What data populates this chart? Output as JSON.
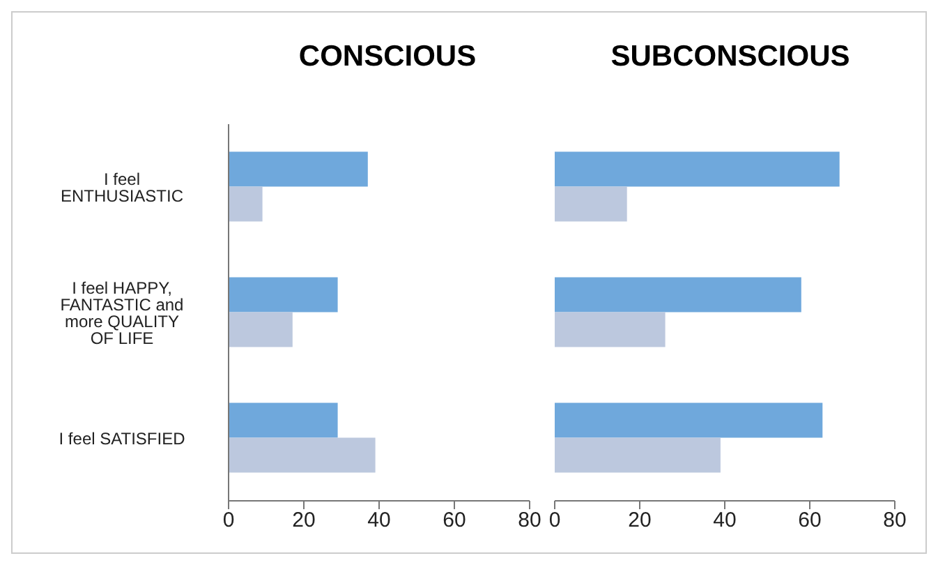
{
  "chart_data": [
    {
      "type": "bar",
      "orientation": "horizontal",
      "title": "CONSCIOUS",
      "categories": [
        "I feel ENTHUSIASTIC",
        "I feel HAPPY, FANTASTIC and more QUALITY OF LIFE",
        "I feel SATISFIED"
      ],
      "series": [
        {
          "color": "#6fa8dc",
          "values": [
            37,
            29,
            29
          ]
        },
        {
          "color": "#bcc8de",
          "values": [
            9,
            17,
            39
          ]
        }
      ],
      "xlim": [
        0,
        80
      ],
      "xticks": [
        0,
        20,
        40,
        60,
        80
      ],
      "grid": false,
      "legend": false
    },
    {
      "type": "bar",
      "orientation": "horizontal",
      "title": "SUBCONSCIOUS",
      "categories": [
        null,
        null,
        null
      ],
      "series": [
        {
          "color": "#6fa8dc",
          "values": [
            67,
            58,
            63
          ]
        },
        {
          "color": "#bcc8de",
          "values": [
            17,
            26,
            39
          ]
        }
      ],
      "xlim": [
        0,
        80
      ],
      "xticks": [
        0,
        20,
        40,
        60,
        80
      ],
      "grid": false,
      "legend": false
    }
  ]
}
